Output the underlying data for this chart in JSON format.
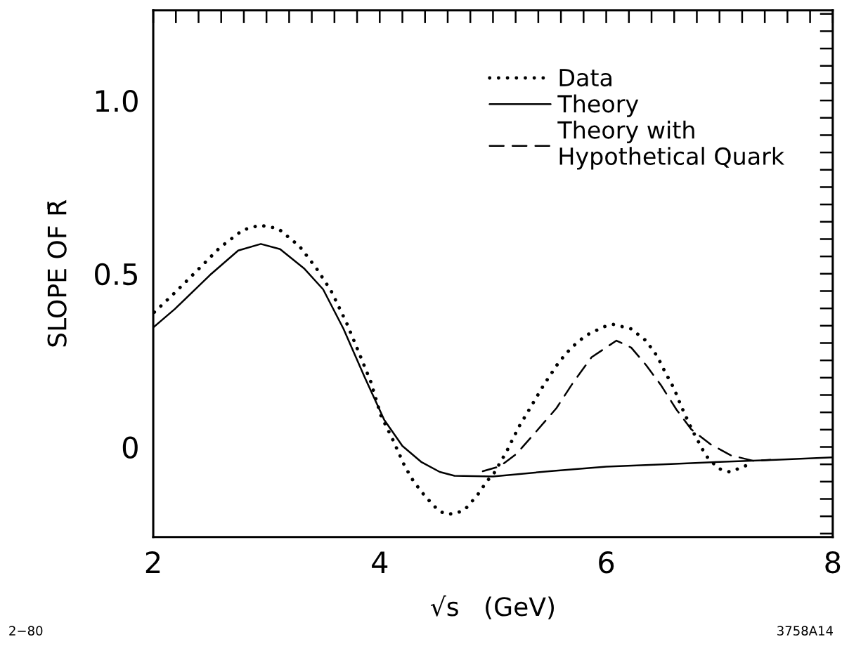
{
  "chart_data": {
    "type": "line",
    "xlabel": "√s   (GeV)",
    "ylabel": "SLOPE OF R̄",
    "xlim": [
      2,
      8
    ],
    "ylim": [
      -0.26,
      1.26
    ],
    "xticks": [
      2,
      4,
      6,
      8
    ],
    "yticks": [
      0,
      0.5,
      {
        "value": 1.0,
        "label": "1.0"
      }
    ],
    "grid": false,
    "legend": "top right",
    "marker": "none",
    "series": [
      {
        "name": "Data",
        "color": "#000000",
        "line_style": "dotted",
        "x": [
          2.01,
          2.19,
          2.42,
          2.59,
          2.79,
          2.94,
          3.1,
          3.29,
          3.44,
          3.57,
          3.71,
          3.8,
          3.92,
          4.01,
          4.12,
          4.22,
          4.3,
          4.4,
          4.52,
          4.59,
          4.67,
          4.75,
          4.86,
          4.95,
          5.0,
          5.12,
          5.23,
          5.32,
          5.45,
          5.58,
          5.69,
          5.82,
          5.98,
          6.06,
          6.22,
          6.35,
          6.45,
          6.52,
          6.6,
          6.66,
          6.76,
          6.88,
          6.99,
          7.09,
          7.17,
          7.24
        ],
        "values": [
          0.389,
          0.445,
          0.52,
          0.576,
          0.626,
          0.64,
          0.631,
          0.58,
          0.516,
          0.451,
          0.356,
          0.285,
          0.189,
          0.091,
          0.018,
          -0.055,
          -0.1,
          -0.142,
          -0.184,
          -0.194,
          -0.192,
          -0.181,
          -0.14,
          -0.097,
          -0.081,
          -0.013,
          0.059,
          0.108,
          0.18,
          0.244,
          0.286,
          0.322,
          0.347,
          0.354,
          0.341,
          0.307,
          0.262,
          0.216,
          0.168,
          0.119,
          0.048,
          -0.025,
          -0.062,
          -0.072,
          -0.062,
          -0.053
        ]
      },
      {
        "name": "Theory",
        "color": "#000000",
        "line_style": "solid",
        "x": [
          2.0,
          2.19,
          2.5,
          2.75,
          2.95,
          3.12,
          3.33,
          3.5,
          3.68,
          3.87,
          4.04,
          4.2,
          4.37,
          4.53,
          4.66,
          5.0,
          5.5,
          6.0,
          6.5,
          7.0,
          7.5,
          8.0
        ],
        "values": [
          0.345,
          0.398,
          0.496,
          0.567,
          0.586,
          0.571,
          0.516,
          0.455,
          0.341,
          0.199,
          0.078,
          0.003,
          -0.044,
          -0.072,
          -0.083,
          -0.085,
          -0.07,
          -0.057,
          -0.05,
          -0.043,
          -0.037,
          -0.03
        ]
      },
      {
        "name": "Theory with\nHypothetical Quark",
        "color": "#000000",
        "line_style": "dashed",
        "x": [
          4.91,
          5.06,
          5.21,
          5.38,
          5.56,
          5.71,
          5.87,
          6.09,
          6.22,
          6.35,
          6.48,
          6.62,
          6.75,
          6.92,
          7.1,
          7.3,
          7.45
        ],
        "values": [
          -0.07,
          -0.056,
          -0.019,
          0.044,
          0.112,
          0.187,
          0.259,
          0.307,
          0.287,
          0.237,
          0.18,
          0.108,
          0.051,
          0.008,
          -0.024,
          -0.04,
          -0.037
        ]
      }
    ],
    "annotations": [
      "2−80",
      "3758A14"
    ]
  }
}
